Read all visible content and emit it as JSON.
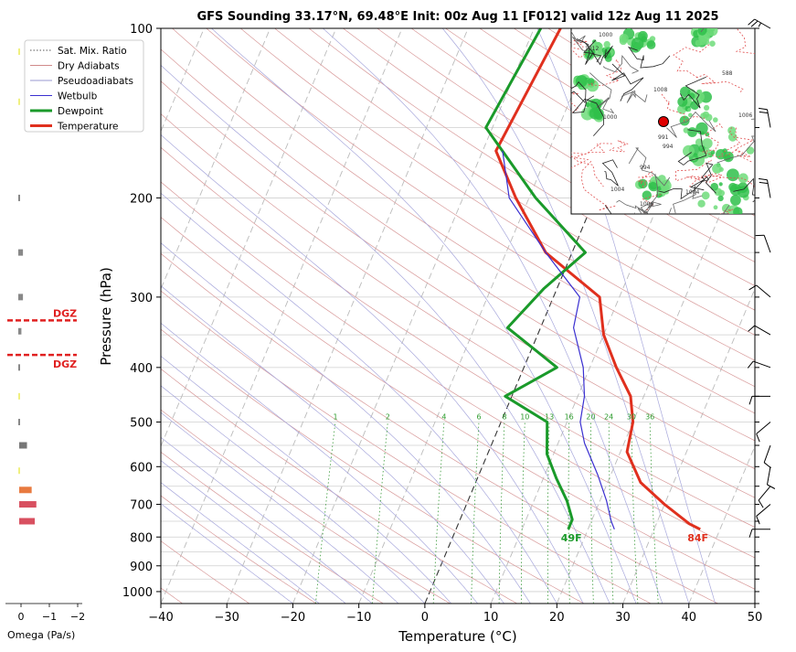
{
  "chart_data": {
    "type": "line",
    "subtype": "skew-t log-p sounding",
    "title": "GFS Sounding 33.17°N, 69.48°E Init: 00z Aug 11 [F012] valid 12z Aug 11 2025",
    "xlabel": "Temperature (°C)",
    "ylabel": "Pressure (hPa)",
    "xlim": [
      -40,
      50
    ],
    "ylim": [
      1050,
      100
    ],
    "x_ticks": [
      "−40",
      "−30",
      "−20",
      "−10",
      "0",
      "10",
      "20",
      "30",
      "40",
      "50"
    ],
    "y_ticks": [
      "100",
      "200",
      "300",
      "400",
      "500",
      "600",
      "700",
      "800",
      "900",
      "1000"
    ],
    "y_tick_values": [
      100,
      200,
      300,
      400,
      500,
      600,
      700,
      800,
      900,
      1000
    ],
    "y_scale": "log",
    "grid": true,
    "legend": {
      "position": "top-left",
      "entries": [
        {
          "label": "Sat. Mix. Ratio",
          "color": "#555555",
          "style": "dotted"
        },
        {
          "label": "Dry Adiabats",
          "color": "#d08a8a",
          "style": "solid"
        },
        {
          "label": "Pseudoadiabats",
          "color": "#9a9ad0",
          "style": "solid"
        },
        {
          "label": "Wetbulb",
          "color": "#3a2fd0",
          "style": "solid"
        },
        {
          "label": "Dewpoint",
          "color": "#1a9a2a",
          "style": "solid"
        },
        {
          "label": "Temperature",
          "color": "#e0301e",
          "style": "solid"
        }
      ]
    },
    "series": [
      {
        "name": "Temperature",
        "color": "#e0301e",
        "points": [
          [
            37,
            775
          ],
          [
            35,
            758
          ],
          [
            30,
            700
          ],
          [
            25,
            640
          ],
          [
            21,
            565
          ],
          [
            20,
            500
          ],
          [
            18,
            450
          ],
          [
            14,
            400
          ],
          [
            10,
            350
          ],
          [
            7,
            300
          ],
          [
            -4,
            250
          ],
          [
            -12,
            200
          ],
          [
            -18,
            165
          ],
          [
            -16,
            100
          ]
        ]
      },
      {
        "name": "Dewpoint",
        "color": "#1a9a2a",
        "points": [
          [
            17,
            775
          ],
          [
            17,
            745
          ],
          [
            15,
            690
          ],
          [
            12,
            630
          ],
          [
            9,
            570
          ],
          [
            7,
            500
          ],
          [
            -1,
            450
          ],
          [
            5,
            400
          ],
          [
            -5,
            340
          ],
          [
            -2,
            290
          ],
          [
            2,
            250
          ],
          [
            -9,
            200
          ],
          [
            -21,
            150
          ],
          [
            -19,
            100
          ]
        ]
      },
      {
        "name": "Wetbulb",
        "color": "#3a2fd0",
        "points": [
          [
            24,
            775
          ],
          [
            23,
            750
          ],
          [
            21,
            690
          ],
          [
            18,
            620
          ],
          [
            14,
            545
          ],
          [
            12,
            500
          ],
          [
            11,
            450
          ],
          [
            9,
            400
          ],
          [
            5,
            340
          ],
          [
            4,
            300
          ],
          [
            -4,
            250
          ],
          [
            -13,
            200
          ],
          [
            -17,
            165
          ]
        ]
      }
    ],
    "mixing_ratio_labels": [
      "1",
      "2",
      "4",
      "6",
      "8",
      "10",
      "13",
      "16",
      "20",
      "24",
      "30",
      "36"
    ],
    "mixing_ratio_values": [
      1,
      2,
      4,
      6,
      8,
      10,
      13,
      16,
      20,
      24,
      30,
      36
    ],
    "surface_temperature_label": "84F",
    "surface_dewpoint_label": "49F",
    "dgz": {
      "label": "DGZ",
      "top_hpa": 330,
      "bottom_hpa": 380
    },
    "omega": {
      "xlabel": "Omega (Pa/s)",
      "ticks": [
        "0",
        "−1",
        "−2"
      ],
      "tick_values": [
        0,
        -1,
        -2
      ],
      "bars": [
        {
          "p": 110,
          "value": -0.05,
          "color": "#f0f080"
        },
        {
          "p": 135,
          "value": -0.05,
          "color": "#f0f080"
        },
        {
          "p": 200,
          "value": -0.05,
          "color": "#888888"
        },
        {
          "p": 250,
          "value": -0.15,
          "color": "#888888"
        },
        {
          "p": 300,
          "value": -0.15,
          "color": "#888888"
        },
        {
          "p": 345,
          "value": -0.1,
          "color": "#888888"
        },
        {
          "p": 400,
          "value": -0.03,
          "color": "#888888"
        },
        {
          "p": 450,
          "value": -0.05,
          "color": "#f0f080"
        },
        {
          "p": 500,
          "value": -0.05,
          "color": "#888888"
        },
        {
          "p": 550,
          "value": -0.25,
          "color": "#777777"
        },
        {
          "p": 610,
          "value": -0.05,
          "color": "#f0f080"
        },
        {
          "p": 660,
          "value": -0.4,
          "color": "#e87a40"
        },
        {
          "p": 700,
          "value": -0.55,
          "color": "#d85060"
        },
        {
          "p": 750,
          "value": -0.5,
          "color": "#d85060"
        }
      ]
    },
    "wind_barbs": [
      {
        "p": 100,
        "dir": 300,
        "kt": 25
      },
      {
        "p": 150,
        "dir": 350,
        "kt": 20
      },
      {
        "p": 200,
        "dir": 350,
        "kt": 20
      },
      {
        "p": 250,
        "dir": 340,
        "kt": 10
      },
      {
        "p": 300,
        "dir": 310,
        "kt": 10
      },
      {
        "p": 350,
        "dir": 300,
        "kt": 10
      },
      {
        "p": 400,
        "dir": 290,
        "kt": 10
      },
      {
        "p": 450,
        "dir": 270,
        "kt": 10
      },
      {
        "p": 500,
        "dir": 230,
        "kt": 10
      },
      {
        "p": 550,
        "dir": 200,
        "kt": 10
      },
      {
        "p": 600,
        "dir": 190,
        "kt": 10
      },
      {
        "p": 650,
        "dir": 220,
        "kt": 10
      },
      {
        "p": 700,
        "dir": 230,
        "kt": 10
      },
      {
        "p": 775,
        "dir": 270,
        "kt": 10
      }
    ]
  },
  "inset_map": {
    "description_labels": [
      "1000",
      "994",
      "1012",
      "1004",
      "1006",
      "588",
      "1008",
      "991",
      "994",
      "1000",
      "1004",
      "1006"
    ],
    "marker_color": "#e00000"
  }
}
